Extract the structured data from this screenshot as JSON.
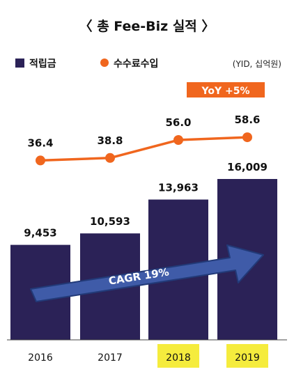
{
  "chart_data": {
    "type": "bar",
    "title": "〈 총 Fee-Biz 실적 〉",
    "unit_note": "(YID, 십억원)",
    "categories": [
      "2016",
      "2017",
      "2018",
      "2019"
    ],
    "highlighted_categories": [
      "2018",
      "2019"
    ],
    "series": [
      {
        "name": "적립금",
        "type": "bar",
        "values": [
          9453,
          10593,
          13963,
          16009
        ],
        "labels": [
          "9,453",
          "10,593",
          "13,963",
          "16,009"
        ]
      },
      {
        "name": "수수료수입",
        "type": "line",
        "values": [
          36.4,
          38.8,
          56.0,
          58.6
        ],
        "labels": [
          "36.4",
          "38.8",
          "56.0",
          "58.6"
        ]
      }
    ],
    "annotations": {
      "arrow_label": "CAGR 19%",
      "badge_label": "YoY +5%"
    },
    "colors": {
      "bar": "#2b2257",
      "line": "#f0661e",
      "arrow": "#3f5ba8",
      "arrow_border": "#223a78",
      "badge": "#f0661e",
      "highlight": "#f5ec3d"
    }
  }
}
